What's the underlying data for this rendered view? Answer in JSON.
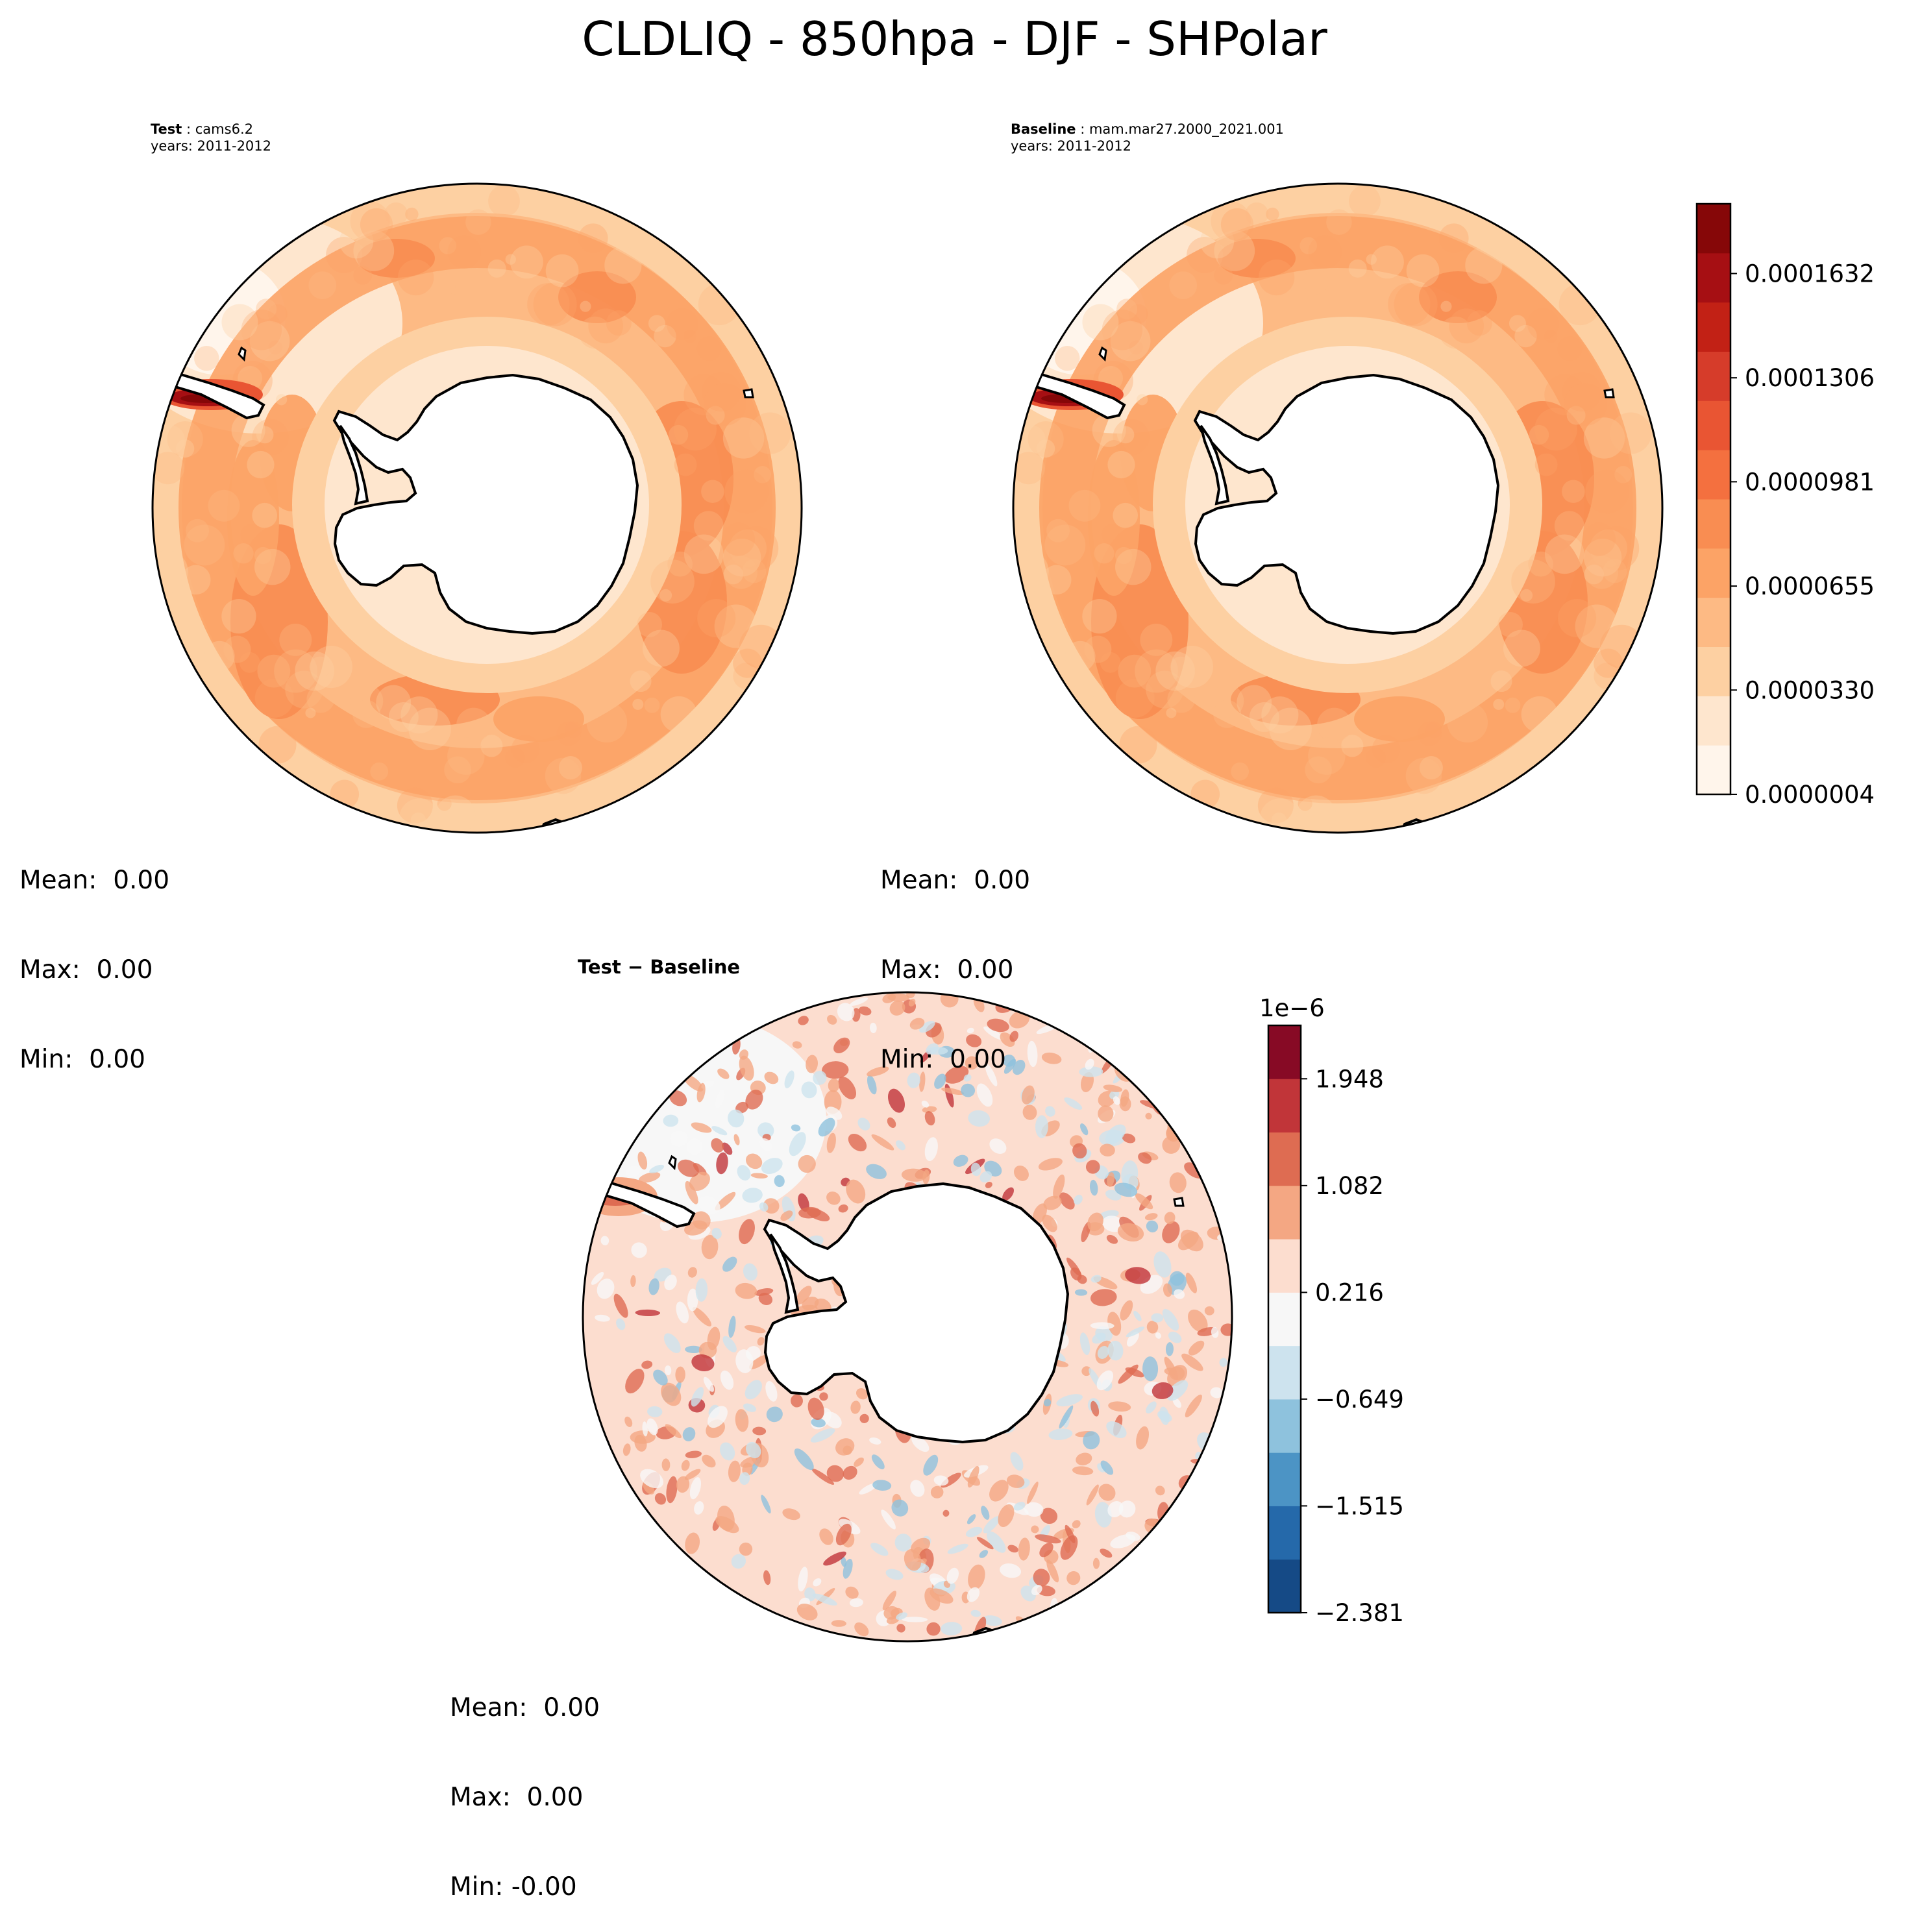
{
  "title": "CLDLIQ - 850hpa - DJF - SHPolar",
  "panels": {
    "test": {
      "label": "Test",
      "case": "cams6.2",
      "years": "years: 2011-2012",
      "mean": "Mean:  0.00",
      "max": "Max:  0.00",
      "min": "Min:  0.00"
    },
    "baseline": {
      "label": "Baseline",
      "case": "mam.mar27.2000_2021.001",
      "years": "years: 2011-2012",
      "mean": "Mean:  0.00",
      "max": "Max:  0.00",
      "min": "Min:  0.00"
    },
    "diff": {
      "title": "Test − Baseline",
      "mean": "Mean:  0.00",
      "max": "Max:  0.00",
      "min": "Min: -0.00"
    }
  },
  "chart_data": [
    {
      "type": "heatmap",
      "panel": "test",
      "projection": "south polar stereographic",
      "variable": "CLDLIQ",
      "level": "850hpa",
      "season": "DJF",
      "colormap": "Reds",
      "colorbar_ticks": [
        "0.0000004",
        "0.0000330",
        "0.0000655",
        "0.0000981",
        "0.0001306",
        "0.0001632"
      ],
      "colorbar_range": [
        4e-07,
        0.000185
      ]
    },
    {
      "type": "heatmap",
      "panel": "baseline",
      "projection": "south polar stereographic",
      "colormap": "Reds",
      "colorbar_ticks": [
        "0.0000004",
        "0.0000330",
        "0.0000655",
        "0.0000981",
        "0.0001306",
        "0.0001632"
      ],
      "colorbar_range": [
        4e-07,
        0.000185
      ]
    },
    {
      "type": "heatmap",
      "panel": "diff",
      "projection": "south polar stereographic",
      "colormap": "RdBu_r",
      "colorbar_ticks": [
        "−2.381",
        "−1.515",
        "−0.649",
        "0.216",
        "1.082",
        "1.948"
      ],
      "colorbar_range": [
        -2.381,
        2.381
      ],
      "colorbar_scale_label": "1e−6"
    }
  ],
  "colors": {
    "reds": [
      "#fff5eb",
      "#fee6ce",
      "#fdd0a2",
      "#fdba84",
      "#fca366",
      "#f98d52",
      "#f4703f",
      "#e95533",
      "#d63c2a",
      "#c22115",
      "#a60f13",
      "#860708"
    ],
    "rdbu": [
      "#154a86",
      "#2569aa",
      "#4c94c5",
      "#8ec2dd",
      "#cde3ee",
      "#f7f7f7",
      "#fcddcf",
      "#f4a783",
      "#de6c52",
      "#c13539",
      "#870a25"
    ],
    "land": "#ffffff",
    "coast": "#000000"
  }
}
